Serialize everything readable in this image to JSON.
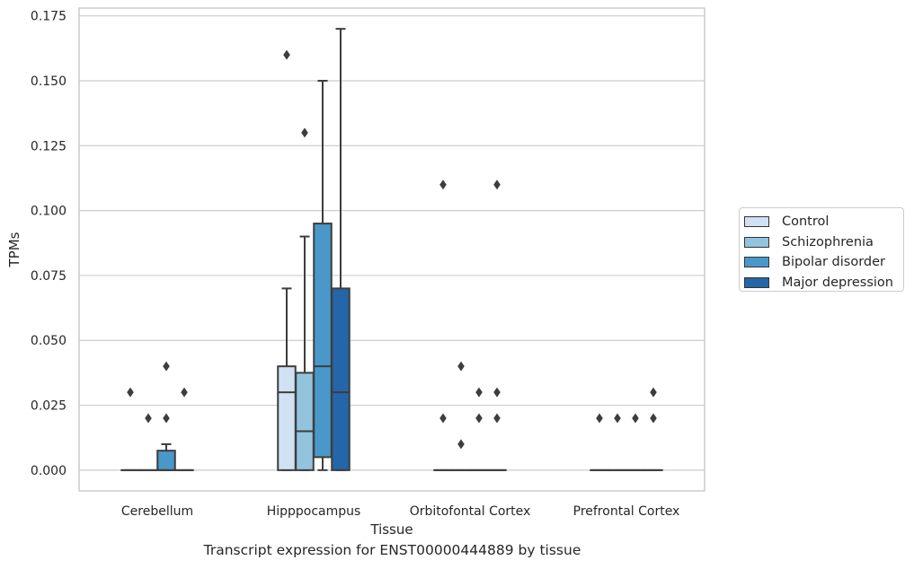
{
  "chart_data": {
    "type": "box",
    "title": "",
    "caption": "Transcript expression for ENST00000444889 by tissue",
    "xlabel": "Tissue",
    "ylabel": "TPMs",
    "ylim": [
      -0.008,
      0.178
    ],
    "yticks": [
      0.0,
      0.025,
      0.05,
      0.075,
      0.1,
      0.125,
      0.15,
      0.175
    ],
    "ytick_labels": [
      "0.000",
      "0.025",
      "0.050",
      "0.075",
      "0.100",
      "0.125",
      "0.150",
      "0.175"
    ],
    "grid": true,
    "legend_position": "right",
    "categories": [
      "Cerebellum",
      "Hipppocampus",
      "Orbitofontal Cortex",
      "Prefrontal Cortex"
    ],
    "series": [
      {
        "name": "Control",
        "color": "#cfe1f2",
        "boxes": [
          {
            "q1": 0.0,
            "median": 0.0,
            "q3": 0.0,
            "whisker_low": 0.0,
            "whisker_high": 0.0,
            "outliers": [
              0.03
            ]
          },
          {
            "q1": 0.0,
            "median": 0.03,
            "q3": 0.04,
            "whisker_low": 0.0,
            "whisker_high": 0.07,
            "outliers": [
              0.16
            ]
          },
          {
            "q1": 0.0,
            "median": 0.0,
            "q3": 0.0,
            "whisker_low": 0.0,
            "whisker_high": 0.0,
            "outliers": [
              0.02,
              0.11
            ]
          },
          {
            "q1": 0.0,
            "median": 0.0,
            "q3": 0.0,
            "whisker_low": 0.0,
            "whisker_high": 0.0,
            "outliers": [
              0.02
            ]
          }
        ]
      },
      {
        "name": "Schizophrenia",
        "color": "#93c4de",
        "boxes": [
          {
            "q1": 0.0,
            "median": 0.0,
            "q3": 0.0,
            "whisker_low": 0.0,
            "whisker_high": 0.0,
            "outliers": [
              0.02
            ]
          },
          {
            "q1": 0.0,
            "median": 0.015,
            "q3": 0.0375,
            "whisker_low": 0.0,
            "whisker_high": 0.09,
            "outliers": [
              0.13
            ]
          },
          {
            "q1": 0.0,
            "median": 0.0,
            "q3": 0.0,
            "whisker_low": 0.0,
            "whisker_high": 0.0,
            "outliers": [
              0.01,
              0.04
            ]
          },
          {
            "q1": 0.0,
            "median": 0.0,
            "q3": 0.0,
            "whisker_low": 0.0,
            "whisker_high": 0.0,
            "outliers": [
              0.02
            ]
          }
        ]
      },
      {
        "name": "Bipolar disorder",
        "color": "#4a98c9",
        "boxes": [
          {
            "q1": 0.0,
            "median": 0.0,
            "q3": 0.0075,
            "whisker_low": 0.0,
            "whisker_high": 0.01,
            "outliers": [
              0.02,
              0.04
            ]
          },
          {
            "q1": 0.005,
            "median": 0.04,
            "q3": 0.095,
            "whisker_low": 0.0,
            "whisker_high": 0.15,
            "outliers": []
          },
          {
            "q1": 0.0,
            "median": 0.0,
            "q3": 0.0,
            "whisker_low": 0.0,
            "whisker_high": 0.0,
            "outliers": [
              0.02,
              0.03
            ]
          },
          {
            "q1": 0.0,
            "median": 0.0,
            "q3": 0.0,
            "whisker_low": 0.0,
            "whisker_high": 0.0,
            "outliers": [
              0.02
            ]
          }
        ]
      },
      {
        "name": "Major depression",
        "color": "#2466a8",
        "boxes": [
          {
            "q1": 0.0,
            "median": 0.0,
            "q3": 0.0,
            "whisker_low": 0.0,
            "whisker_high": 0.0,
            "outliers": [
              0.03
            ]
          },
          {
            "q1": 0.0,
            "median": 0.03,
            "q3": 0.07,
            "whisker_low": 0.0,
            "whisker_high": 0.17,
            "outliers": []
          },
          {
            "q1": 0.0,
            "median": 0.0,
            "q3": 0.0,
            "whisker_low": 0.0,
            "whisker_high": 0.0,
            "outliers": [
              0.02,
              0.03,
              0.11
            ]
          },
          {
            "q1": 0.0,
            "median": 0.0,
            "q3": 0.0,
            "whisker_low": 0.0,
            "whisker_high": 0.0,
            "outliers": [
              0.02,
              0.03
            ]
          }
        ]
      }
    ]
  }
}
